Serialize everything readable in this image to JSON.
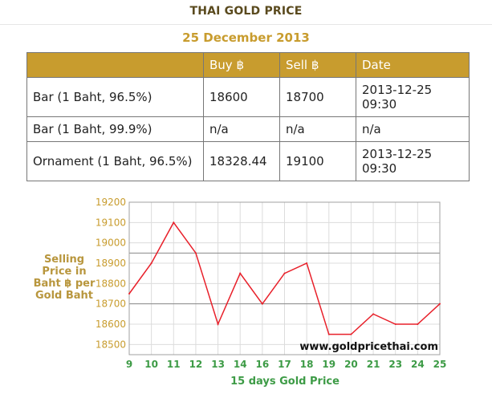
{
  "header": {
    "title": "THAI GOLD PRICE",
    "date": "25 December 2013"
  },
  "table": {
    "headers": [
      "",
      "Buy ฿",
      "Sell ฿",
      "Date"
    ],
    "rows": [
      {
        "name": "Bar (1 Baht, 96.5%)",
        "buy": "18600",
        "sell": "18700",
        "date": "2013-12-25",
        "time": "09:30"
      },
      {
        "name": "Bar (1 Baht, 99.9%)",
        "buy": "n/a",
        "sell": "n/a",
        "date": "n/a",
        "time": ""
      },
      {
        "name": "Ornament (1 Baht, 96.5%)",
        "buy": "18328.44",
        "sell": "19100",
        "date": "2013-12-25",
        "time": "09:30"
      }
    ]
  },
  "chart_data": {
    "type": "line",
    "x": [
      "9",
      "10",
      "11",
      "12",
      "13",
      "14",
      "16",
      "17",
      "18",
      "19",
      "20",
      "21",
      "23",
      "24",
      "25"
    ],
    "values": [
      18750,
      18900,
      19100,
      18950,
      18600,
      18850,
      18700,
      18850,
      18900,
      18550,
      18550,
      18650,
      18600,
      18600,
      18700
    ],
    "yticks": [
      18500,
      18600,
      18700,
      18800,
      18900,
      19000,
      19100,
      19200
    ],
    "ylim": [
      18450,
      19200
    ],
    "ylabel": "Selling Price in Baht ฿ per Gold Baht",
    "xlabel": "15 days Gold Price",
    "watermark": "www.goldpricethai.com",
    "colors": {
      "line": "#e8202a",
      "tick_labels": "#c89c2e",
      "x_labels": "#3d9b46"
    }
  }
}
